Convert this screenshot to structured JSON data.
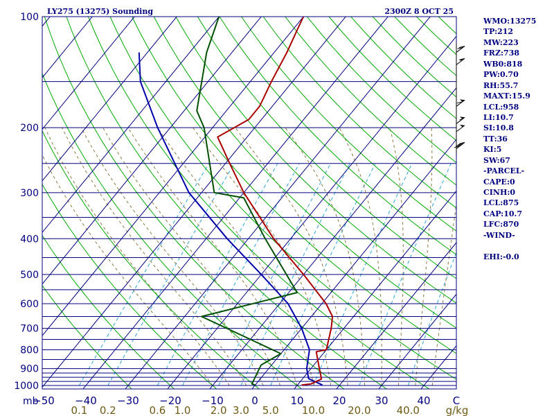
{
  "header": {
    "station": "LY275 (13275) Sounding",
    "time": "2300Z  8 OCT 25"
  },
  "indices": [
    "WMO:13275",
    "TP:212",
    "MW:223",
    "FRZ:738",
    "WB0:818",
    "PW:0.70",
    "RH:55.7",
    "MAXT:15.9",
    "LCL:958",
    "LI:10.7",
    "SI:10.8",
    "TT:36",
    "KI:5",
    "SW:67",
    "-PARCEL-",
    "CAPE:0",
    "CINH:0",
    "LCL:875",
    "CAP:10.7",
    "LFC:870",
    "-WIND-",
    "",
    "EHI:-0.0"
  ],
  "colors": {
    "frame": "#000080",
    "temperature": "#aa0000",
    "dewpoint": "#005000",
    "parcel": "#0000aa",
    "dry_adiabat": "#00aa00",
    "moist_adiabat": "#8a7a40",
    "mixing_ratio": "#2aa6d8"
  },
  "chart_data": {
    "type": "skew-t",
    "y_unit_label": "mb",
    "x_unit_label": "C",
    "mixing_unit_label": "g/kg",
    "pressure_ticks": [
      100,
      200,
      300,
      400,
      500,
      600,
      700,
      800,
      900,
      1000
    ],
    "temperature_ticks": [
      -50,
      -40,
      -30,
      -20,
      -10,
      0,
      10,
      20,
      30,
      40
    ],
    "mixing_ratio_ticks": [
      "0.1",
      "0.2",
      "0.6",
      "1.0",
      "2.0",
      "3.0",
      "5.0",
      "10.0",
      "20.0",
      "40.0"
    ],
    "isobars": [
      100,
      150,
      200,
      250,
      300,
      350,
      400,
      450,
      500,
      550,
      600,
      650,
      700,
      750,
      800,
      850,
      900,
      925,
      950,
      975,
      1000
    ],
    "isotherms": [
      -150,
      -140,
      -130,
      -120,
      -110,
      -100,
      -90,
      -80,
      -70,
      -60,
      -50,
      -40,
      -30,
      -20,
      -10,
      0,
      10,
      20,
      30,
      40
    ],
    "dry_adiabats_theta_c": [
      -30,
      -20,
      -10,
      0,
      10,
      20,
      30,
      40,
      50,
      60,
      70,
      80,
      90,
      100,
      110,
      120,
      130,
      140,
      150,
      160,
      170,
      180,
      190,
      200
    ],
    "moist_adiabats_c": [
      -10,
      -6,
      -2,
      2,
      6,
      10,
      14,
      18,
      22,
      26,
      30,
      34,
      38,
      42
    ],
    "mixing_ratio_lines": [
      0.1,
      0.2,
      0.6,
      1.0,
      2.0,
      3.0,
      5.0,
      10.0,
      20.0,
      40.0
    ],
    "temperature_profile": [
      {
        "p": 997,
        "t": 11
      },
      {
        "p": 990,
        "t": 13
      },
      {
        "p": 960,
        "t": 14.5
      },
      {
        "p": 900,
        "t": 12
      },
      {
        "p": 810,
        "t": 8
      },
      {
        "p": 800,
        "t": 10
      },
      {
        "p": 700,
        "t": 7
      },
      {
        "p": 650,
        "t": 5
      },
      {
        "p": 600,
        "t": 1
      },
      {
        "p": 500,
        "t": -10
      },
      {
        "p": 400,
        "t": -24
      },
      {
        "p": 300,
        "t": -40
      },
      {
        "p": 250,
        "t": -49
      },
      {
        "p": 212,
        "t": -57
      },
      {
        "p": 190,
        "t": -53
      },
      {
        "p": 175,
        "t": -53
      },
      {
        "p": 150,
        "t": -55
      },
      {
        "p": 125,
        "t": -57
      },
      {
        "p": 108,
        "t": -59
      },
      {
        "p": 100,
        "t": -60
      }
    ],
    "dewpoint_profile": [
      {
        "p": 997,
        "t": 0
      },
      {
        "p": 990,
        "t": -1
      },
      {
        "p": 880,
        "t": -2.5
      },
      {
        "p": 820,
        "t": 0
      },
      {
        "p": 650,
        "t": -26
      },
      {
        "p": 560,
        "t": -8
      },
      {
        "p": 400,
        "t": -26
      },
      {
        "p": 310,
        "t": -39
      },
      {
        "p": 300,
        "t": -47
      },
      {
        "p": 200,
        "t": -62
      },
      {
        "p": 180,
        "t": -67
      },
      {
        "p": 125,
        "t": -76
      },
      {
        "p": 100,
        "t": -80
      }
    ],
    "parcel_profile": [
      {
        "p": 997,
        "t": 15.9
      },
      {
        "p": 958,
        "t": 11.4
      },
      {
        "p": 900,
        "t": 9
      },
      {
        "p": 800,
        "t": 6
      },
      {
        "p": 700,
        "t": 0
      },
      {
        "p": 600,
        "t": -8
      },
      {
        "p": 500,
        "t": -20
      },
      {
        "p": 400,
        "t": -35
      },
      {
        "p": 300,
        "t": -53
      },
      {
        "p": 250,
        "t": -62
      },
      {
        "p": 200,
        "t": -73
      },
      {
        "p": 150,
        "t": -86
      },
      {
        "p": 125,
        "t": -92
      }
    ],
    "wind_barbs": [
      {
        "p": 125,
        "dir": 245,
        "kt": 20
      },
      {
        "p": 135,
        "dir": 250,
        "kt": 15
      },
      {
        "p": 175,
        "dir": 255,
        "kt": 60
      },
      {
        "p": 195,
        "dir": 255,
        "kt": 55
      },
      {
        "p": 205,
        "dir": 250,
        "kt": 50
      },
      {
        "p": 228,
        "dir": 245,
        "kt": 40
      }
    ]
  }
}
